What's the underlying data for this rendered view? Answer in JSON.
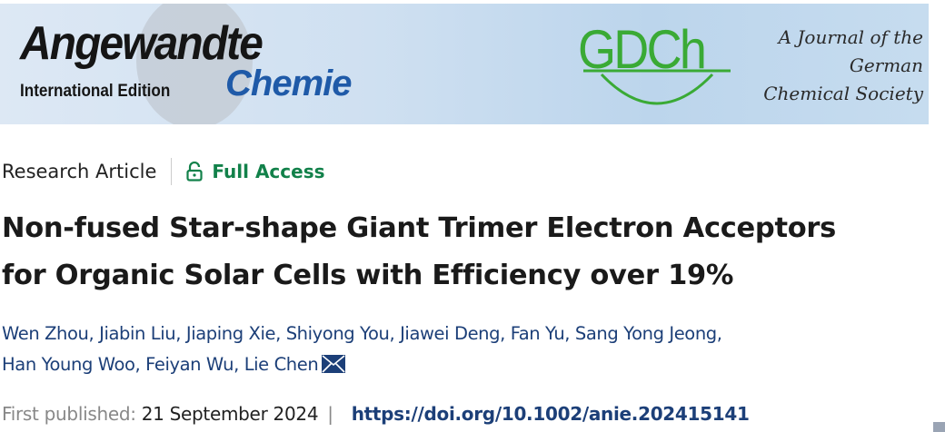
{
  "banner": {
    "logo_title": "Angewandte",
    "logo_subtitle": "International Edition",
    "logo_chemie": "Chemie",
    "society_logo": "GDCh",
    "journal_line1": "A Journal of the",
    "journal_line2": "German",
    "journal_line3": "Chemical Society"
  },
  "meta": {
    "article_type": "Research Article",
    "access_label": "Full Access",
    "access_icon": "unlocked-padlock-icon",
    "access_color": "#12814a"
  },
  "title_line1": "Non-fused Star-shape Giant Trimer Electron Acceptors",
  "title_line2": "for Organic Solar Cells with Efficiency over 19%",
  "authors": [
    "Wen Zhou",
    "Jiabin Liu",
    "Jiaping Xie",
    "Shiyong You",
    "Jiawei Deng",
    "Fan Yu",
    "Sang Yong Jeong",
    "Han Young Woo",
    "Feiyan Wu",
    "Lie Chen"
  ],
  "corresponding_icon": "envelope-icon",
  "publication": {
    "label": "First published:",
    "date": "21 September 2024",
    "separator": "|",
    "doi": "https://doi.org/10.1002/anie.202415141"
  }
}
